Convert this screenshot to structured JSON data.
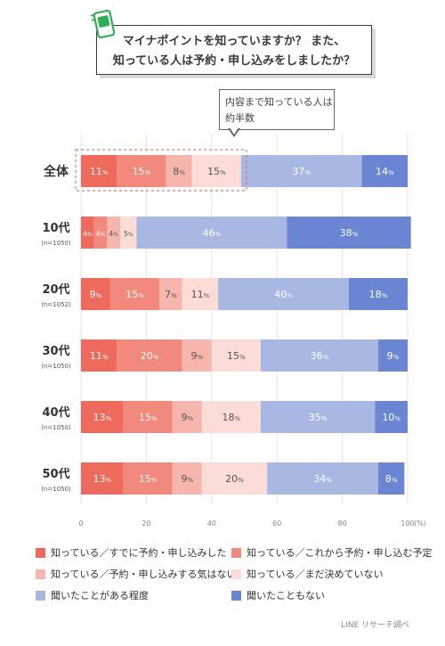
{
  "title": {
    "line1": "マイナポイントを知っていますか？ また、",
    "line2": "知っている人は予約・申し込みをしましたか？"
  },
  "callout": {
    "line1": "内容まで知っている人は",
    "line2": "約半数"
  },
  "colors": [
    "#ee6a5c",
    "#f1897d",
    "#f6b6ad",
    "#fbdcd6",
    "#a9b8e3",
    "#6a86d2"
  ],
  "chart_data": {
    "type": "bar",
    "orientation": "horizontal-stacked",
    "categories": [
      "全体",
      "10代",
      "20代",
      "30代",
      "40代",
      "50代"
    ],
    "category_notes": [
      "",
      "(n=1050)",
      "(n=1052)",
      "(n=1050)",
      "(n=1050)",
      "(n=1050)"
    ],
    "series": [
      {
        "name": "知っている／すでに予約・申し込みした",
        "values": [
          11,
          4,
          9,
          11,
          13,
          13
        ]
      },
      {
        "name": "知っている／これから予約・申し込む予定",
        "values": [
          15,
          4,
          15,
          20,
          15,
          15
        ]
      },
      {
        "name": "知っている／予約・申し込みする気はない",
        "values": [
          8,
          4,
          7,
          9,
          9,
          9
        ]
      },
      {
        "name": "知っている／まだ決めていない",
        "values": [
          15,
          5,
          11,
          15,
          18,
          20
        ]
      },
      {
        "name": "聞いたことがある程度",
        "values": [
          37,
          46,
          40,
          36,
          35,
          34
        ]
      },
      {
        "name": "聞いたこともない",
        "values": [
          14,
          38,
          18,
          9,
          10,
          8
        ]
      }
    ],
    "xlim": [
      0,
      100
    ],
    "xticks": [
      "0",
      "20",
      "40",
      "60",
      "80",
      "100"
    ],
    "xunit": "(%)",
    "value_suffix": "%",
    "grid": true,
    "legend_position": "bottom"
  },
  "source": "LINE リサーチ調べ"
}
